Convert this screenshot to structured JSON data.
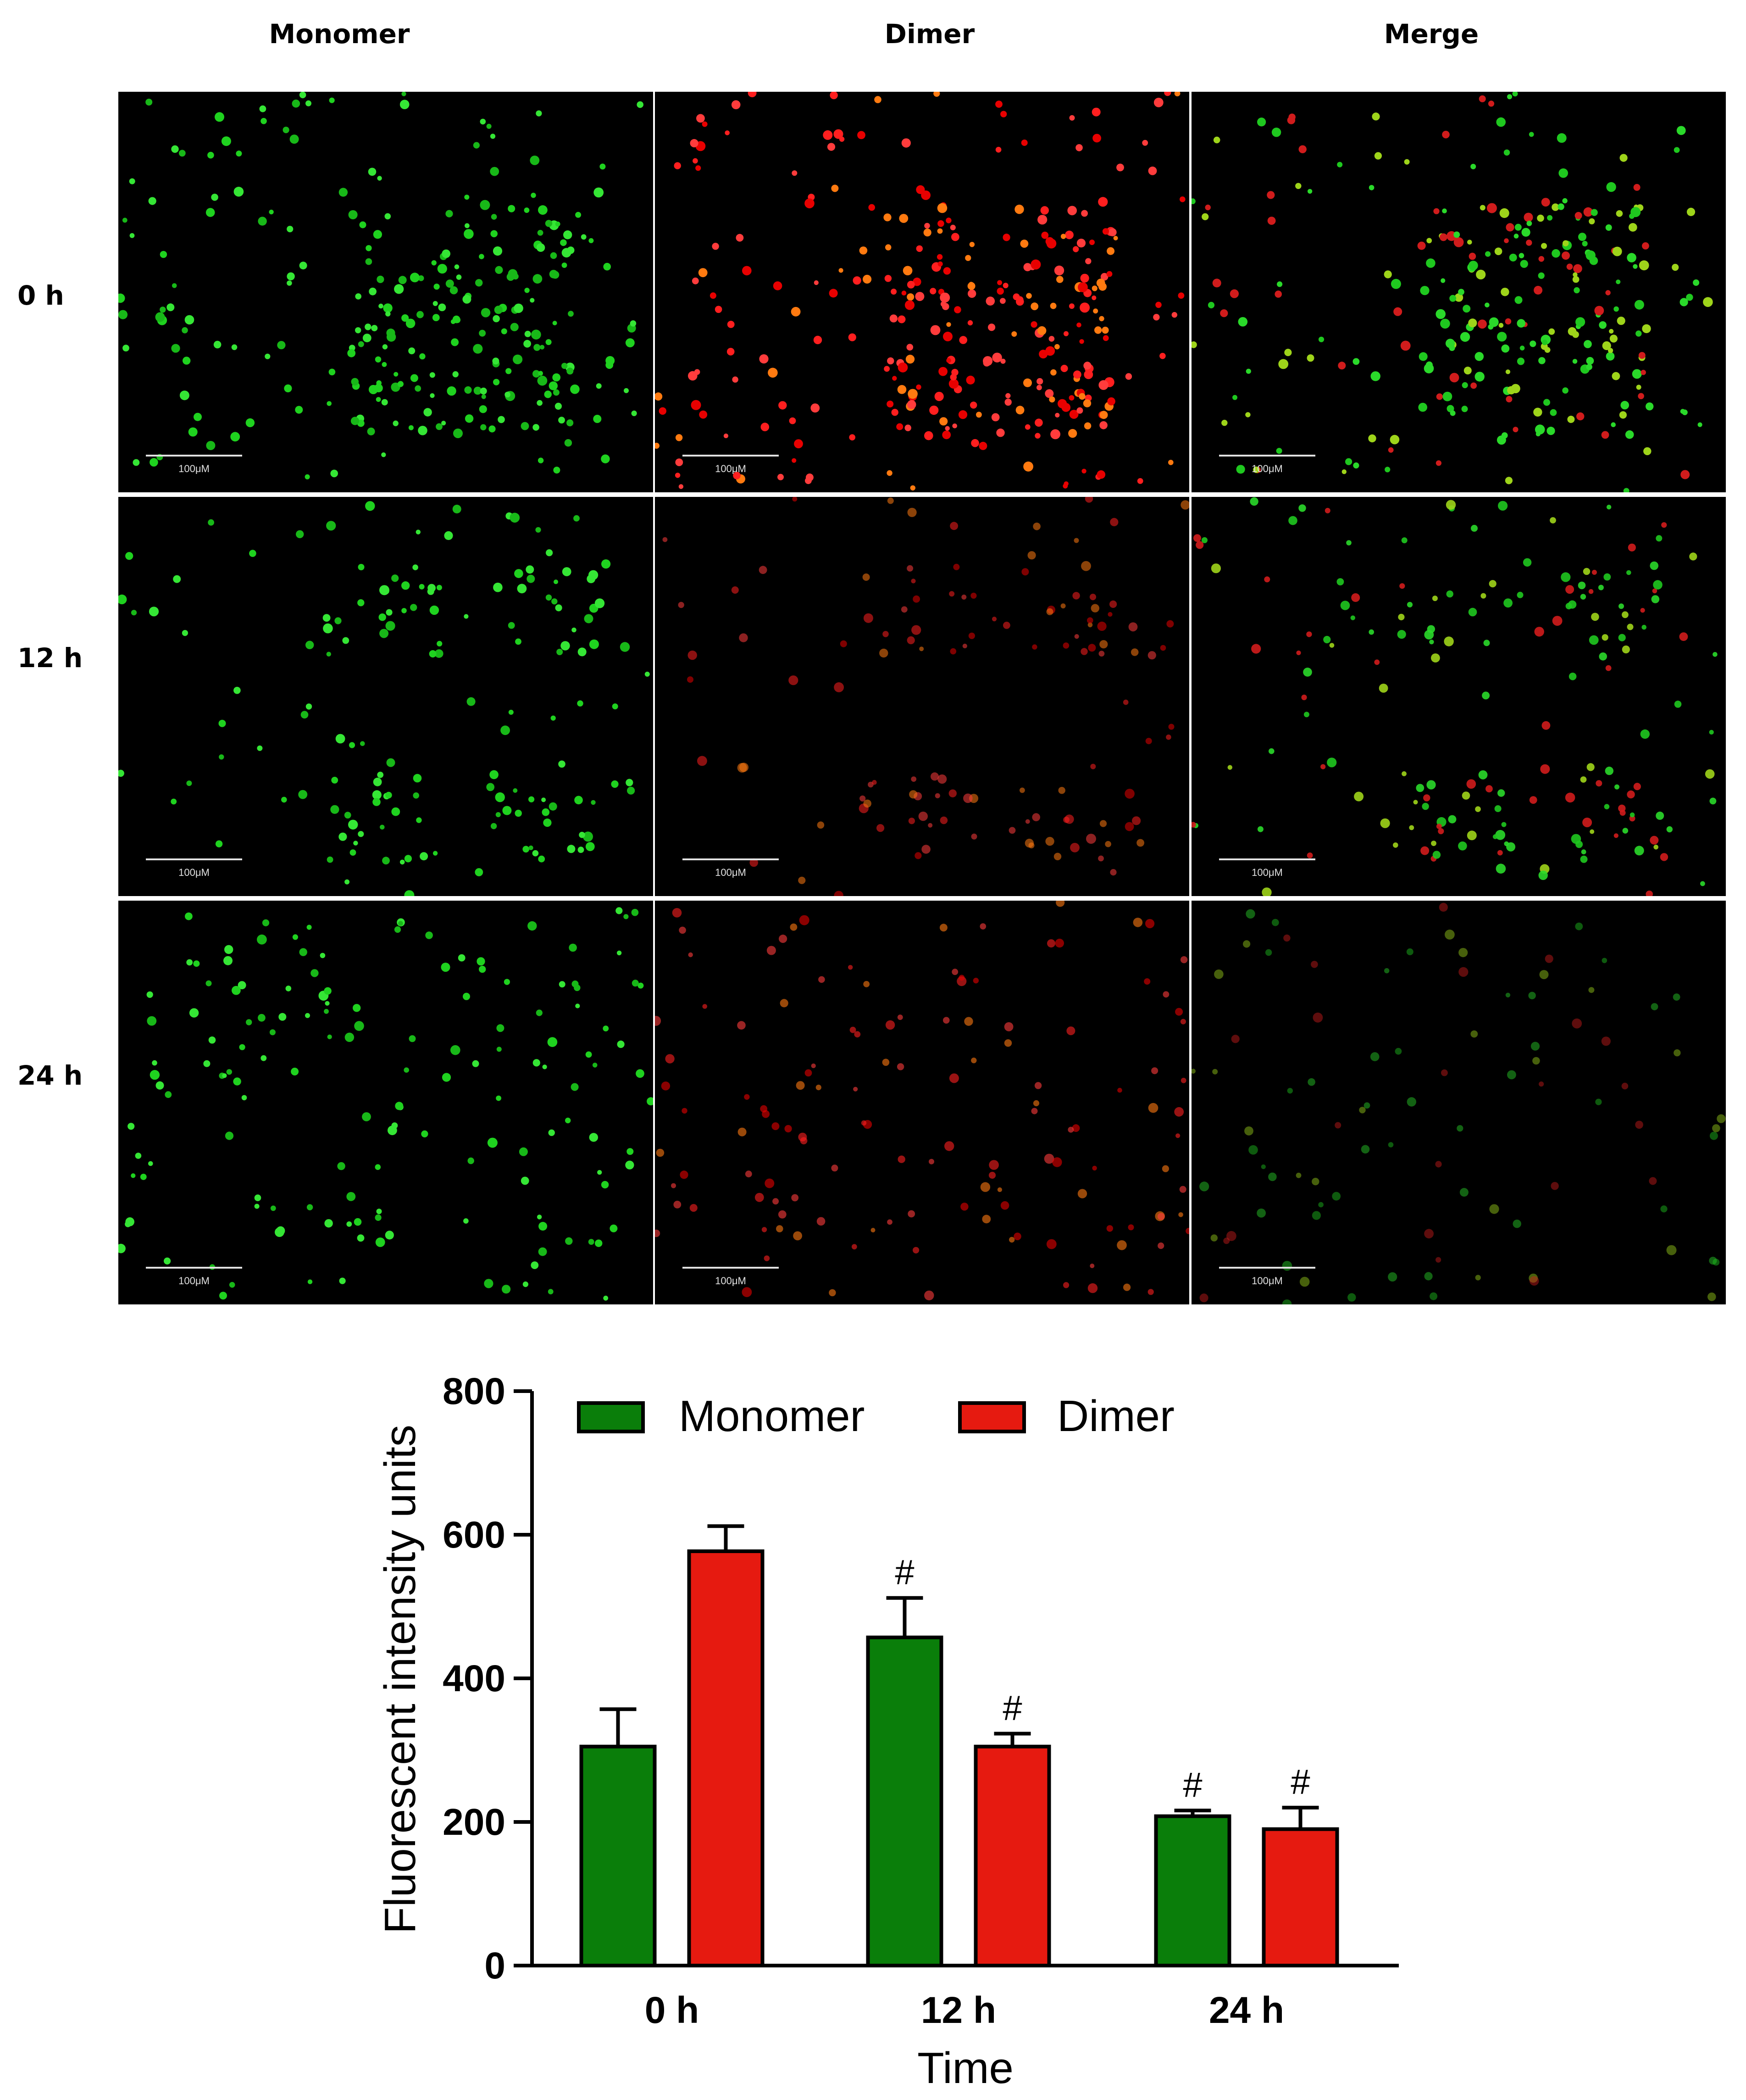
{
  "micrographs": {
    "columns": [
      "Monomer",
      "Dimer",
      "Merge"
    ],
    "rows": [
      "0 h",
      "12 h",
      "24 h"
    ],
    "scale_bar_label": "100μM",
    "channel_colors": {
      "Monomer": "#2bdc2b",
      "Dimer": "#ff2a1a",
      "Merge": "#c8a020"
    }
  },
  "chart_data": {
    "type": "bar",
    "categories": [
      "0 h",
      "12 h",
      "24 h"
    ],
    "series": [
      {
        "name": "Monomer",
        "color": "#0a7e0a",
        "values": [
          305,
          457,
          208
        ],
        "errors": [
          52,
          55,
          8
        ],
        "marks": [
          "",
          "#",
          "#"
        ]
      },
      {
        "name": "Dimer",
        "color": "#e61a10",
        "values": [
          577,
          305,
          190
        ],
        "errors": [
          35,
          18,
          30
        ],
        "marks": [
          "",
          "#",
          "#"
        ]
      }
    ],
    "xlabel": "Time",
    "ylabel": "Fluorescent intensity units",
    "ylim": [
      0,
      800
    ],
    "yticks": [
      0,
      200,
      400,
      600,
      800
    ],
    "legend": "top"
  }
}
